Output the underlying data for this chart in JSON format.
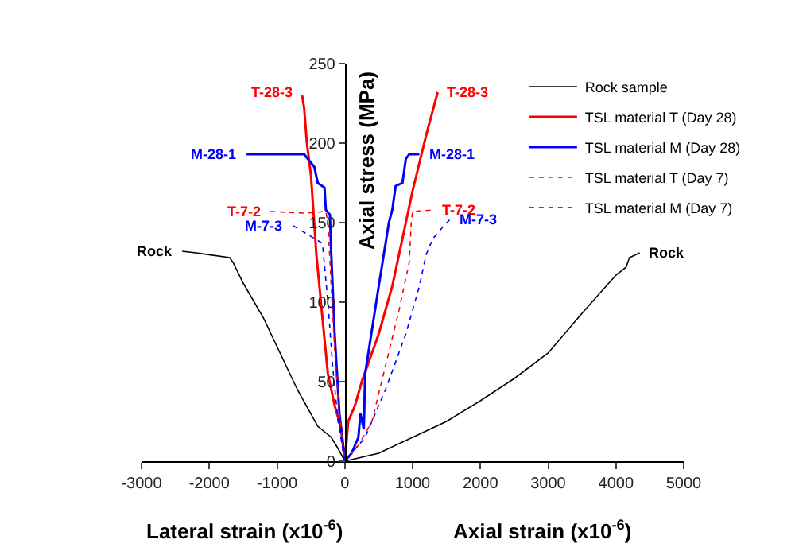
{
  "chart_data": {
    "type": "line",
    "xlabel": "Lateral strain (x10$^{-6}$)",
    "ylabel": "Axial stress (MPa)",
    "xlim": [
      -3000,
      5000
    ],
    "xticks": [
      -3000,
      -2000,
      -1000,
      0,
      1000,
      2000,
      3000,
      4000,
      5000
    ],
    "ylim": [
      0,
      250
    ],
    "yticks": [
      0,
      50,
      100,
      150,
      200,
      250
    ],
    "legend": "top right",
    "marker": "none",
    "series": [
      {
        "name": "Rock sample",
        "color": "#000000",
        "line_style": "solid",
        "x": [
          -2400,
          -2200,
          -1700,
          -1650,
          -1500,
          -1200,
          -1000,
          -700,
          -400,
          -200,
          -100,
          0,
          500,
          1000,
          1500,
          2000,
          2500,
          3000,
          3500,
          4000,
          4150,
          4200,
          4350
        ],
        "values": [
          132,
          131,
          128,
          125,
          112,
          90,
          72,
          45,
          22,
          15,
          8,
          0,
          5,
          15,
          25,
          38,
          52,
          68,
          93,
          117,
          122,
          128,
          131
        ]
      },
      {
        "name": "TSL material T (Day 28)",
        "color": "#ff0000",
        "line_style": "solid",
        "x": [
          -630,
          -600,
          -560,
          -500,
          -420,
          -330,
          -250,
          -150,
          -50,
          0,
          50,
          150,
          250,
          500,
          700,
          1000,
          1200,
          1370
        ],
        "values": [
          230,
          222,
          200,
          180,
          130,
          90,
          55,
          35,
          20,
          0,
          25,
          35,
          50,
          80,
          110,
          170,
          205,
          232
        ]
      },
      {
        "name": "TSL material M (Day 28)",
        "color": "#0000ff",
        "line_style": "solid",
        "x": [
          -1450,
          -1000,
          -600,
          -450,
          -400,
          -300,
          -280,
          -220,
          -200,
          -150,
          -80,
          0,
          100,
          200,
          230,
          280,
          300,
          500,
          650,
          700,
          750,
          850,
          900,
          950,
          1100
        ],
        "values": [
          193,
          193,
          193,
          185,
          175,
          172,
          158,
          155,
          130,
          80,
          30,
          0,
          5,
          15,
          30,
          20,
          55,
          110,
          150,
          158,
          173,
          175,
          190,
          193,
          193
        ]
      },
      {
        "name": "TSL material T (Day 7)",
        "color": "#ff0000",
        "line_style": "dotted",
        "x": [
          -1100,
          -600,
          -280,
          -250,
          -200,
          -150,
          -80,
          0,
          200,
          400,
          600,
          800,
          950,
          980,
          1000,
          1300
        ],
        "values": [
          157,
          156,
          157,
          150,
          110,
          70,
          30,
          0,
          10,
          25,
          60,
          95,
          125,
          150,
          157,
          158
        ]
      },
      {
        "name": "TSL material M (Day 7)",
        "color": "#0000ff",
        "line_style": "dotted",
        "x": [
          -760,
          -330,
          -250,
          -180,
          -100,
          0,
          300,
          600,
          900,
          1100,
          1200,
          1300,
          1400,
          1550
        ],
        "values": [
          148,
          137,
          100,
          60,
          25,
          0,
          15,
          45,
          80,
          110,
          130,
          140,
          145,
          152
        ]
      }
    ],
    "annotations": [
      "Axial strain (x10$^{-6}$)",
      {
        "text": "T-28-3",
        "x": -630,
        "y": 232
      },
      {
        "text": "M-28-1",
        "x": -1450,
        "y": 193
      },
      {
        "text": "T-7-2",
        "x": -1100,
        "y": 157
      },
      {
        "text": "M-7-3",
        "x": -760,
        "y": 148
      },
      {
        "text": "Rock",
        "x": -2400,
        "y": 132
      },
      {
        "text": "T-28-3",
        "x": 1370,
        "y": 232
      },
      {
        "text": "M-28-1",
        "x": 1100,
        "y": 193
      },
      {
        "text": "T-7-2",
        "x": 1300,
        "y": 158
      },
      {
        "text": "M-7-3",
        "x": 1550,
        "y": 152
      },
      {
        "text": "Rock",
        "x": 4350,
        "y": 131
      }
    ]
  }
}
